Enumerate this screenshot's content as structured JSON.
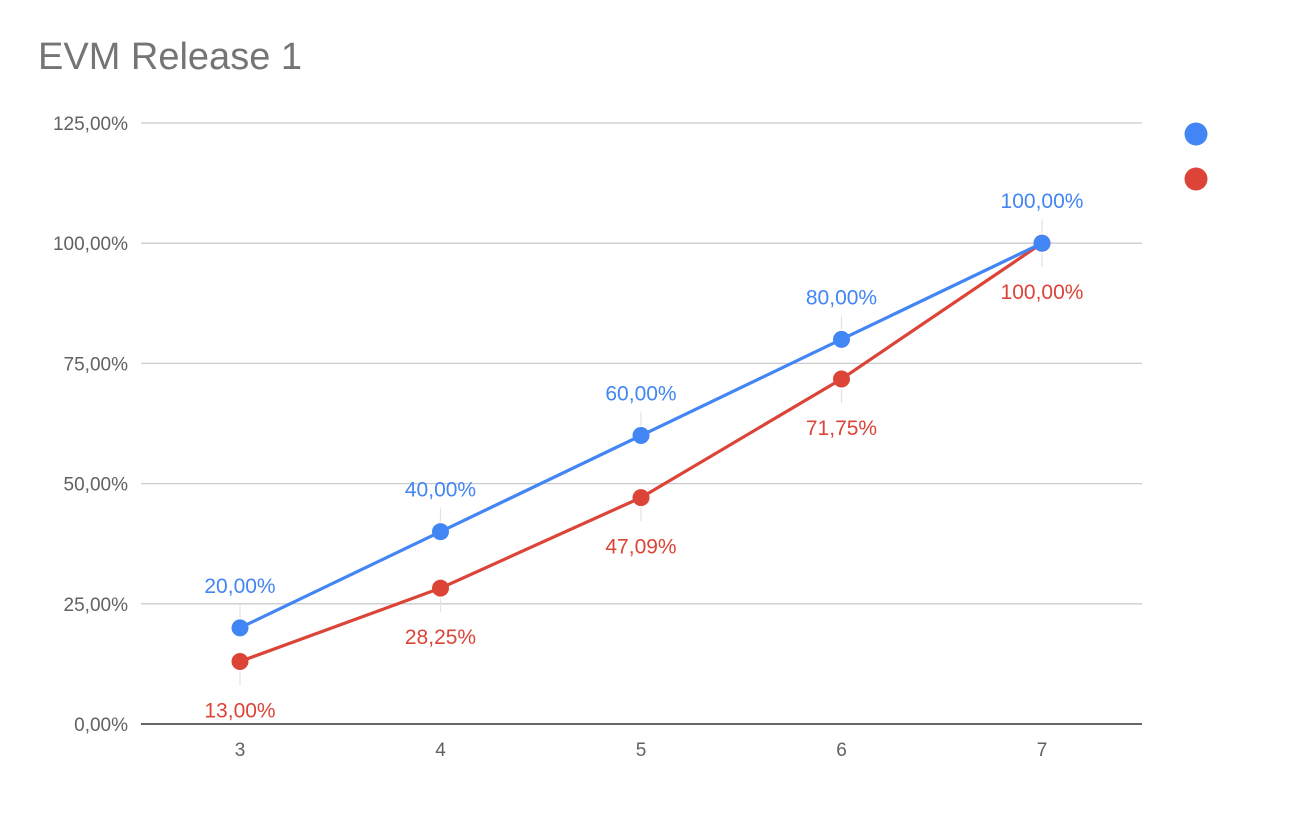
{
  "chart_data": {
    "type": "line",
    "title": "EVM Release 1",
    "xlabel": "",
    "ylabel": "",
    "x": [
      "3",
      "4",
      "5",
      "6",
      "7"
    ],
    "ylim": [
      0,
      125
    ],
    "y_ticks": [
      "0,00%",
      "25,00%",
      "50,00%",
      "75,00%",
      "100,00%",
      "125,00%"
    ],
    "grid": true,
    "legend_position": "right",
    "series": [
      {
        "color": "#4285f4",
        "label_position": "above",
        "values": [
          20.0,
          40.0,
          60.0,
          80.0,
          100.0
        ],
        "labels": [
          "20,00%",
          "40,00%",
          "60,00%",
          "80,00%",
          "100,00%"
        ]
      },
      {
        "color": "#db4437",
        "label_position": "below",
        "values": [
          13.0,
          28.25,
          47.09,
          71.75,
          100.0
        ],
        "labels": [
          "13,00%",
          "28,25%",
          "47,09%",
          "71,75%",
          "100,00%"
        ]
      }
    ]
  },
  "colors": {
    "title": "#757575",
    "tick_text": "#616161",
    "grid": "#cccccc",
    "baseline": "#333333",
    "label_stem": "#e3e3e3"
  }
}
